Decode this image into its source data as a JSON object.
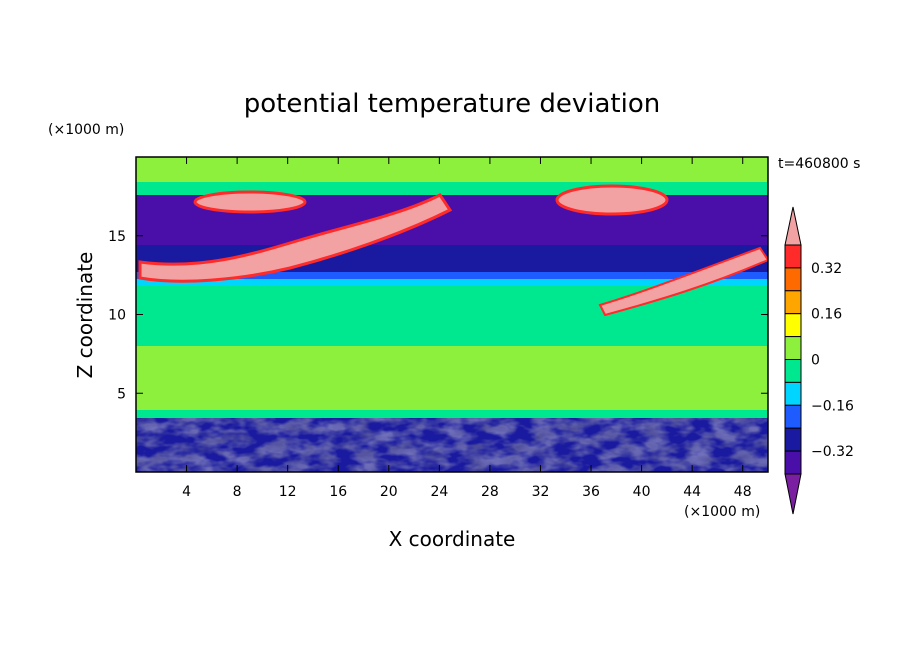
{
  "chart_data": {
    "type": "heatmap",
    "title": "potential temperature deviation",
    "xlabel": "X coordinate",
    "ylabel": "Z coordinate",
    "x_unit": "(×1000 m)",
    "y_unit": "(×1000 m)",
    "time_label": "t=460800 s",
    "xlim": [
      0,
      50
    ],
    "ylim": [
      0,
      20
    ],
    "x_ticks": [
      4,
      8,
      12,
      16,
      20,
      24,
      28,
      32,
      36,
      40,
      44,
      48
    ],
    "y_ticks": [
      5,
      10,
      15
    ],
    "colorbar": {
      "levels": [
        -0.48,
        -0.4,
        -0.32,
        -0.24,
        -0.16,
        -0.08,
        0,
        0.08,
        0.16,
        0.24,
        0.32,
        0.4
      ],
      "labels": [
        0.32,
        0.16,
        0,
        -0.16,
        -0.32
      ],
      "extend": "both",
      "colors": [
        "#7b1fa2",
        "#4a0fa8",
        "#1a1aa0",
        "#1e5cff",
        "#00d5ff",
        "#00e88f",
        "#8df03c",
        "#ffff00",
        "#ffa500",
        "#ff6a00",
        "#ff2a2a",
        "#f2a2a2"
      ]
    }
  }
}
